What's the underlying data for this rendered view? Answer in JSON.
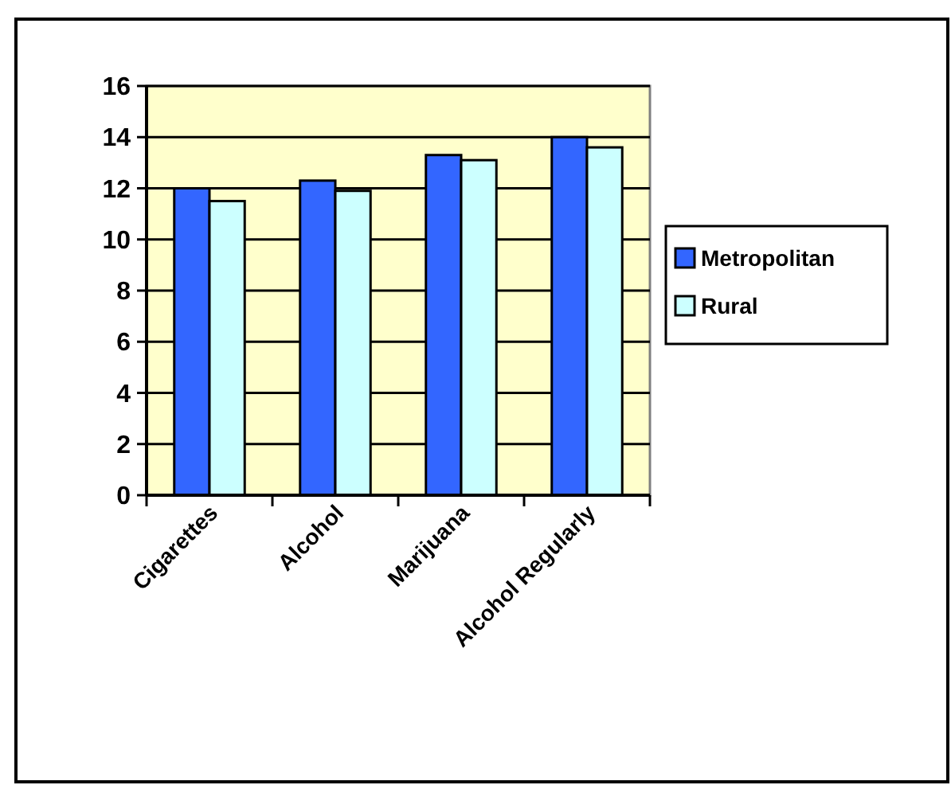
{
  "chart_data": {
    "type": "bar",
    "categories": [
      "Cigarettes",
      "Alcohol",
      "Marijuana",
      "Alcohol Regularly"
    ],
    "series": [
      {
        "name": "Metropolitan",
        "color": "#3366ff",
        "values": [
          12.0,
          12.3,
          13.3,
          14.0
        ]
      },
      {
        "name": "Rural",
        "color": "#ccffff",
        "values": [
          11.5,
          11.9,
          13.1,
          13.6
        ]
      }
    ],
    "ylim": [
      0,
      16
    ],
    "yticks": [
      0,
      2,
      4,
      6,
      8,
      10,
      12,
      14,
      16
    ],
    "grid": "y",
    "legend": "right"
  }
}
